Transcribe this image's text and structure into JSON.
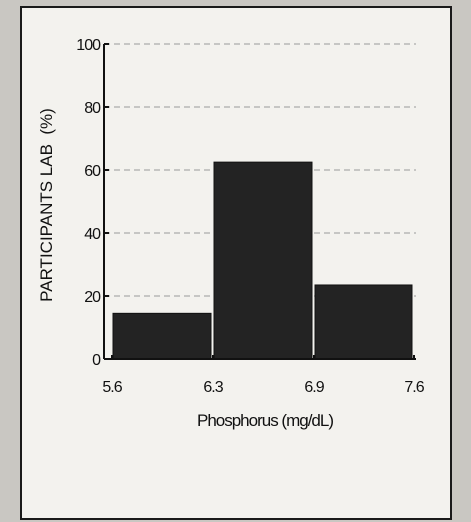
{
  "chart_data": {
    "type": "bar",
    "title": "",
    "xlabel": "Phosphorus (mg/dL)",
    "ylabel": "PARTICIPANTS LAB  (%)",
    "x_tick_labels": [
      "5.6",
      "6.3",
      "6.9",
      "7.6"
    ],
    "y_tick_labels": [
      "0",
      "20",
      "40",
      "60",
      "80",
      "100"
    ],
    "bins": [
      [
        5.6,
        6.3
      ],
      [
        6.3,
        6.9
      ],
      [
        6.9,
        7.6
      ]
    ],
    "values": [
      14.5,
      62.5,
      23.5
    ],
    "ylim": [
      0,
      100
    ],
    "grid": "horizontal dashed",
    "colors": {
      "bar": "#232323",
      "axis": "#111111",
      "grid": "#9a9a9a",
      "background": "#f3f2ee"
    }
  }
}
